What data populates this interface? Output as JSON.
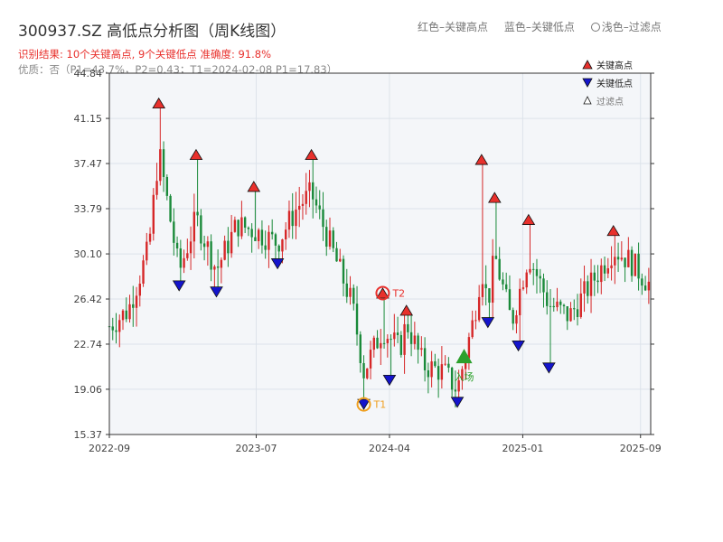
{
  "header": {
    "title": "300937.SZ 高低点分析图（周K线图）",
    "legend_red": "红色–关键高点",
    "legend_blue": "蓝色–关键低点",
    "legend_light": "浅色–过滤点",
    "result": "识别结果: 10个关键高点, 9个关键低点   准确度: 91.8%",
    "quality": "优质：否（P1=43.7%，P2=0.43；T1=2024-02-08 P1=17.83）"
  },
  "colors": {
    "up": "#d62728",
    "down": "#1a8a3a",
    "high_marker": "#e8302c",
    "low_marker": "#1414cc",
    "entry_marker": "#2ca02c",
    "t1": "#f0a020",
    "t2": "#e8302c",
    "plot_bg": "#f4f6f9",
    "grid": "#dde3ea"
  },
  "chart_data": {
    "type": "candlestick",
    "title": "300937.SZ 高低点分析图（周K线图）",
    "xlabel": "",
    "ylabel": "",
    "ylim": [
      15.37,
      44.84
    ],
    "y_ticks": [
      15.37,
      19.06,
      22.74,
      26.42,
      30.1,
      33.79,
      37.47,
      41.15,
      44.84
    ],
    "y_tick_labels": [
      "15.37",
      "19.06",
      "22.74",
      "26.42",
      "30.10",
      "33.79",
      "37.47",
      "41.15",
      "44.84"
    ],
    "x_tick_labels": [
      "2022-09",
      "2023-07",
      "2024-04",
      "2025-01",
      "2025-09"
    ],
    "x_tick_dates": [
      "2022-09-01",
      "2023-07-01",
      "2024-04-01",
      "2025-01-01",
      "2025-09-01"
    ],
    "x_range": [
      "2022-09-01",
      "2025-09-22"
    ],
    "grid": true,
    "legend": {
      "position": "top-right",
      "entries": [
        "关键高点",
        "关键低点",
        "过滤点"
      ]
    },
    "key_highs": [
      {
        "date": "2022-12-12",
        "value": 42.4
      },
      {
        "date": "2023-02-27",
        "value": 38.2
      },
      {
        "date": "2023-06-26",
        "value": 35.6
      },
      {
        "date": "2023-10-23",
        "value": 38.2
      },
      {
        "date": "2024-05-06",
        "value": 25.5
      },
      {
        "date": "2024-10-08",
        "value": 37.8
      },
      {
        "date": "2024-11-04",
        "value": 34.7
      },
      {
        "date": "2025-01-13",
        "value": 32.9
      },
      {
        "date": "2025-07-07",
        "value": 32.0
      },
      {
        "date": "2024-03-18",
        "value": 26.9
      }
    ],
    "key_lows": [
      {
        "date": "2023-01-23",
        "value": 27.5
      },
      {
        "date": "2023-04-10",
        "value": 27.0
      },
      {
        "date": "2023-08-14",
        "value": 29.3
      },
      {
        "date": "2024-02-08",
        "value": 17.83
      },
      {
        "date": "2024-04-01",
        "value": 19.8
      },
      {
        "date": "2024-08-19",
        "value": 18.0
      },
      {
        "date": "2024-10-21",
        "value": 24.5
      },
      {
        "date": "2024-12-23",
        "value": 22.6
      },
      {
        "date": "2025-02-24",
        "value": 20.8
      }
    ],
    "entry": {
      "date": "2024-09-02",
      "value": 21.7,
      "label": "入场"
    },
    "t1": {
      "date": "2024-02-08",
      "value": 17.83,
      "label": "T1"
    },
    "t2": {
      "date": "2024-03-18",
      "value": 26.9,
      "label": "T2"
    },
    "series": [
      {
        "name": "周K线",
        "keypoints": [
          [
            "2022-09-01",
            24.2
          ],
          [
            "2022-10-10",
            25.5
          ],
          [
            "2022-10-31",
            28.0
          ],
          [
            "2022-11-21",
            30.5
          ],
          [
            "2022-12-12",
            38.5
          ],
          [
            "2023-01-23",
            28.6
          ],
          [
            "2023-02-27",
            33.0
          ],
          [
            "2023-04-10",
            28.8
          ],
          [
            "2023-05-22",
            32.5
          ],
          [
            "2023-06-26",
            32.0
          ],
          [
            "2023-08-14",
            31.0
          ],
          [
            "2023-09-25",
            34.0
          ],
          [
            "2023-10-23",
            35.0
          ],
          [
            "2023-12-04",
            30.5
          ],
          [
            "2024-01-15",
            26.0
          ],
          [
            "2024-02-08",
            20.5
          ],
          [
            "2024-03-18",
            24.0
          ],
          [
            "2024-04-22",
            22.3
          ],
          [
            "2024-05-06",
            24.5
          ],
          [
            "2024-06-10",
            21.0
          ],
          [
            "2024-07-22",
            20.5
          ],
          [
            "2024-08-19",
            19.0
          ],
          [
            "2024-09-02",
            21.5
          ],
          [
            "2024-09-23",
            25.0
          ],
          [
            "2024-10-08",
            29.0
          ],
          [
            "2024-10-21",
            26.0
          ],
          [
            "2024-11-04",
            30.0
          ],
          [
            "2024-12-09",
            24.5
          ],
          [
            "2025-01-13",
            30.0
          ],
          [
            "2025-02-24",
            26.0
          ],
          [
            "2025-04-07",
            25.0
          ],
          [
            "2025-05-19",
            27.5
          ],
          [
            "2025-07-07",
            30.5
          ],
          [
            "2025-08-11",
            29.5
          ],
          [
            "2025-09-22",
            27.5
          ]
        ]
      }
    ]
  }
}
